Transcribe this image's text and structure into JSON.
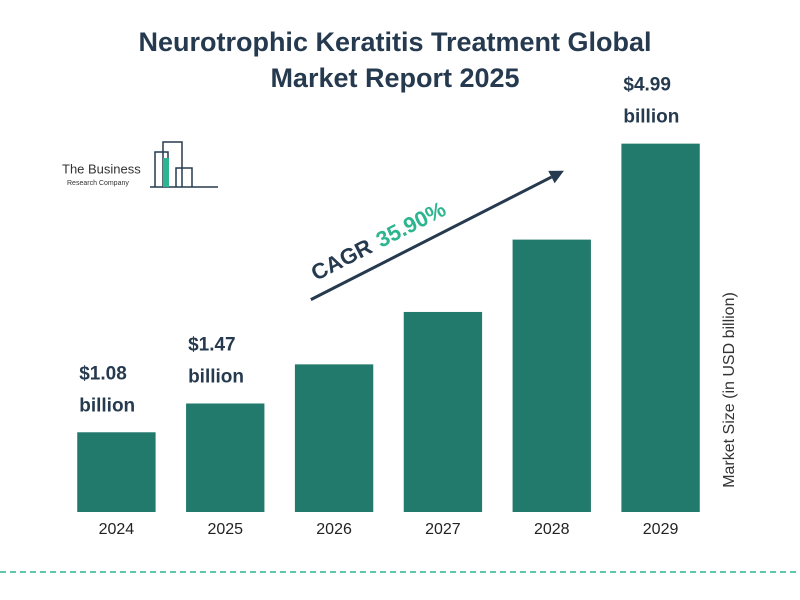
{
  "chart_data": {
    "type": "bar",
    "title": [
      "Neurotrophic Keratitis Treatment Global",
      "Market Report 2025"
    ],
    "categories": [
      "2024",
      "2025",
      "2026",
      "2027",
      "2028",
      "2029"
    ],
    "values": [
      1.08,
      1.47,
      2.0,
      2.71,
      3.69,
      4.99
    ],
    "value_labels": [
      "$1.08 billion",
      "$1.47 billion",
      null,
      null,
      null,
      "$4.99 billion"
    ],
    "color": "#217a6b",
    "ylim": [
      0,
      5.5
    ],
    "y_label": "Market Size (in USD billion)",
    "annotation": {
      "label": "CAGR",
      "value": "35.90%"
    },
    "logo": [
      "The Business",
      "Research Company"
    ]
  }
}
